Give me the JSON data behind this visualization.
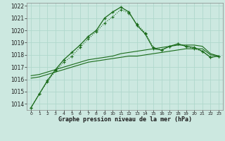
{
  "title": "Graphe pression niveau de la mer (hPa)",
  "background_color": "#cce8e0",
  "grid_color": "#b0d8cc",
  "line_color": "#1a6b1a",
  "x_labels": [
    "0",
    "1",
    "2",
    "3",
    "4",
    "5",
    "6",
    "7",
    "8",
    "9",
    "10",
    "11",
    "12",
    "13",
    "14",
    "15",
    "16",
    "17",
    "18",
    "19",
    "20",
    "21",
    "22",
    "23"
  ],
  "series_dotted": [
    1013.7,
    1014.8,
    1015.8,
    1016.7,
    1017.4,
    1017.9,
    1018.6,
    1019.3,
    1019.9,
    1020.6,
    1021.1,
    1021.7,
    1021.4,
    1020.5,
    1019.8,
    1018.6,
    1018.4,
    1018.7,
    1018.9,
    1018.7,
    1018.5,
    1018.3,
    1017.8,
    1017.9
  ],
  "series_solid_peaked": [
    1013.7,
    1014.8,
    1015.9,
    1016.8,
    1017.6,
    1018.2,
    1018.8,
    1019.5,
    1020.0,
    1021.0,
    1021.5,
    1021.9,
    1021.5,
    1020.4,
    1019.7,
    1018.5,
    1018.4,
    1018.7,
    1018.9,
    1018.7,
    1018.6,
    1018.3,
    1017.8,
    1017.9
  ],
  "series_ref1": [
    1016.1,
    1016.2,
    1016.4,
    1016.6,
    1016.8,
    1017.0,
    1017.2,
    1017.4,
    1017.5,
    1017.6,
    1017.7,
    1017.8,
    1017.9,
    1017.9,
    1018.0,
    1018.1,
    1018.2,
    1018.3,
    1018.4,
    1018.5,
    1018.5,
    1018.5,
    1018.0,
    1017.9
  ],
  "series_ref2": [
    1016.3,
    1016.4,
    1016.6,
    1016.8,
    1017.0,
    1017.2,
    1017.4,
    1017.6,
    1017.7,
    1017.8,
    1017.9,
    1018.1,
    1018.2,
    1018.3,
    1018.4,
    1018.5,
    1018.6,
    1018.7,
    1018.8,
    1018.8,
    1018.8,
    1018.7,
    1018.1,
    1017.9
  ],
  "ylim_min": 1013.5,
  "ylim_max": 1022.25,
  "yticks": [
    1014,
    1015,
    1016,
    1017,
    1018,
    1019,
    1020,
    1021,
    1022
  ]
}
